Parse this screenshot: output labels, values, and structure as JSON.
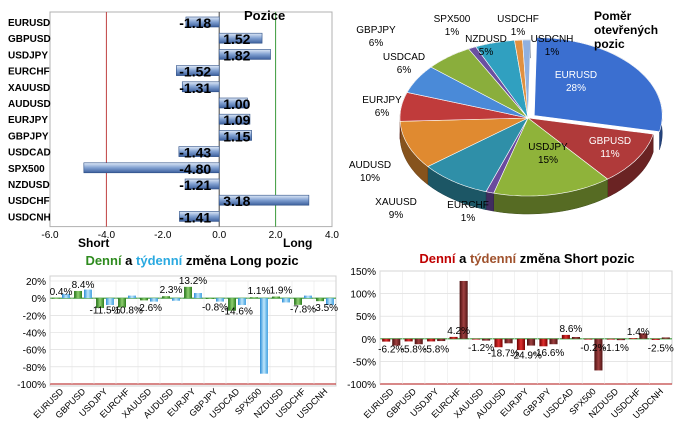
{
  "colors": {
    "long_green": "#2e8b1e",
    "weekly_blue": "#2aa9e0",
    "daily_red": "#c00000",
    "weekly_brown": "#a0522d",
    "axis_red": "#c04040",
    "axis_green": "#3a9a3a"
  },
  "chart_data": [
    {
      "type": "bar",
      "orientation": "horizontal",
      "title": "Pozice",
      "categories": [
        "EURUSD",
        "GBPUSD",
        "USDJPY",
        "EURCHF",
        "XAUUSD",
        "AUDUSD",
        "EURJPY",
        "GBPJPY",
        "USDCAD",
        "SPX500",
        "NZDUSD",
        "USDCHF",
        "USDCNH"
      ],
      "values": [
        -1.18,
        1.52,
        1.82,
        -1.52,
        -1.31,
        1.0,
        1.09,
        1.15,
        -1.43,
        -4.8,
        -1.21,
        3.18,
        -1.41
      ],
      "value_labels": [
        "-1.18",
        "1.52",
        "1.82",
        "-1.52",
        "-1.31",
        "1.00",
        "1.09",
        "1.15",
        "-1.43",
        "-4.80",
        "-1.21",
        "3.18",
        "-1.41"
      ],
      "xlim": [
        -6.0,
        4.0
      ],
      "xticks": [
        "-6.0",
        "-4.0",
        "-2.0",
        "0.0",
        "2.0",
        "4.0"
      ],
      "annotations": [
        "Short",
        "Long"
      ]
    },
    {
      "type": "pie",
      "title": "Poměr otevřených pozic",
      "labels": [
        "EURUSD",
        "GBPUSD",
        "USDJPY",
        "EURCHF",
        "XAUUSD",
        "AUDUSD",
        "EURJPY",
        "USDCAD",
        "GBPJPY",
        "SPX500",
        "NZDUSD",
        "USDCHF",
        "USDCNH"
      ],
      "values": [
        28,
        11,
        15,
        1,
        9,
        10,
        6,
        6,
        6,
        1,
        5,
        1,
        1
      ],
      "value_labels": [
        "28%",
        "11%",
        "15%",
        "1%",
        "9%",
        "10%",
        "6%",
        "6%",
        "6%",
        "1%",
        "5%",
        "1%",
        "1%"
      ],
      "colors": [
        "#3b6fd0",
        "#b03a3a",
        "#8fb33a",
        "#6a4a9e",
        "#2f8fa8",
        "#e08a30",
        "#c03b3b",
        "#4a8ad8",
        "#8aae3c",
        "#6a50a0",
        "#30a0c0",
        "#e09040",
        "#90b0e0"
      ]
    },
    {
      "type": "bar",
      "title_parts": [
        "Denní",
        " a ",
        "týdenní",
        " změna Long pozic"
      ],
      "categories": [
        "EURUSD",
        "GBPUSD",
        "USDJPY",
        "EURCHF",
        "XAUUSD",
        "AUDUSD",
        "EURJPY",
        "GBPJPY",
        "USDCAD",
        "SPX500",
        "NZDUSD",
        "USDCHF",
        "USDCNH"
      ],
      "series": [
        {
          "values": [
            0.4,
            8.4,
            -11.5,
            -10.8,
            -2.6,
            2.3,
            13.2,
            -0.8,
            -14.6,
            1.1,
            1.9,
            -7.8,
            -3.5
          ]
        },
        {
          "values": [
            5,
            10,
            -8,
            3,
            -4,
            -3,
            6,
            -4,
            -8,
            -88,
            -5,
            3,
            -8
          ]
        }
      ],
      "value_labels": [
        "0.4%",
        "8.4%",
        "-11.5%",
        "-10.8%",
        "-2.6%",
        "2.3%",
        "13.2%",
        "-0.8%",
        "-14.6%",
        "1.1%",
        "1.9%",
        "-7.8%",
        "-3.5%"
      ],
      "ylim": [
        -100,
        20
      ],
      "yticks": [
        "20%",
        "0%",
        "-20%",
        "-40%",
        "-60%",
        "-80%",
        "-100%"
      ]
    },
    {
      "type": "bar",
      "title_parts": [
        "Denní",
        " a ",
        "týdenní",
        " změna Short pozic"
      ],
      "categories": [
        "EURUSD",
        "GBPUSD",
        "USDJPY",
        "EURCHF",
        "XAUUSD",
        "AUDUSD",
        "EURJPY",
        "GBPJPY",
        "USDCAD",
        "SPX500",
        "NZDUSD",
        "USDCHF",
        "USDCNH"
      ],
      "series": [
        {
          "values": [
            -6.2,
            -5.8,
            -5.8,
            4.2,
            -1.2,
            -18.7,
            -24.9,
            -16.6,
            8.6,
            -0.2,
            -1.1,
            1.4,
            -2.5
          ]
        },
        {
          "values": [
            -15,
            -12,
            -5,
            128,
            -4,
            -10,
            -15,
            -12,
            4,
            -70,
            -3,
            12,
            3
          ]
        }
      ],
      "value_labels": [
        "-6.2%",
        "-5.8%",
        "-5.8%",
        "4.2%",
        "-1.2%",
        "-18.7%",
        "-24.9%",
        "-16.6%",
        "8.6%",
        "-0.2%",
        "-1.1%",
        "1.4%",
        "-2.5%"
      ],
      "ylim": [
        -100,
        150
      ],
      "yticks": [
        "150%",
        "100%",
        "50%",
        "0%",
        "-50%",
        "-100%"
      ]
    }
  ]
}
